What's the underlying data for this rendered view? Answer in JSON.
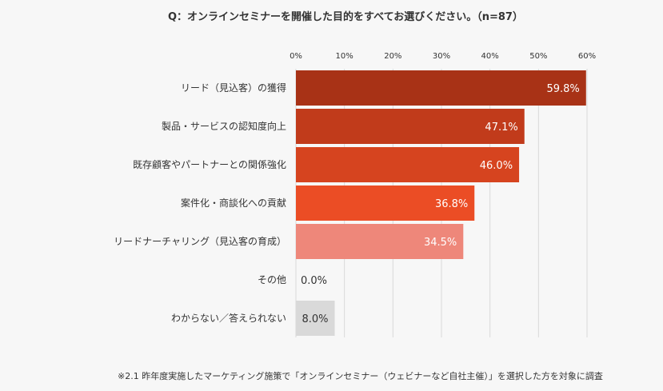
{
  "chart_data": {
    "type": "bar",
    "orientation": "horizontal",
    "title": "Q：オンラインセミナーを開催した目的をすべてお選びください。（n=87）",
    "categories": [
      "リード（見込客）の獲得",
      "製品・サービスの認知度向上",
      "既存顧客やパートナーとの関係強化",
      "案件化・商談化への貢献",
      "リードナーチャリング（見込客の育成）",
      "その他",
      "わからない／答えられない"
    ],
    "values": [
      59.8,
      47.1,
      46.0,
      36.8,
      34.5,
      0.0,
      8.0
    ],
    "data_labels": [
      "59.8%",
      "47.1%",
      "46.0%",
      "36.8%",
      "34.5%",
      "0.0%",
      "8.0%"
    ],
    "colors": [
      "#a83216",
      "#c13b1b",
      "#d6441f",
      "#eb4d25",
      "#ee877a",
      "#d9d9d9",
      "#d9d9d9"
    ],
    "label_colors": [
      "#ffffff",
      "#ffffff",
      "#ffffff",
      "#ffffff",
      "#ffffff",
      "#333333",
      "#333333"
    ],
    "xlim": [
      0,
      60
    ],
    "xticks": [
      "0%",
      "10%",
      "20%",
      "30%",
      "40%",
      "50%",
      "60%"
    ],
    "xtick_values": [
      0,
      10,
      20,
      30,
      40,
      50,
      60
    ],
    "axis_position": "top",
    "grid": true,
    "footnote": "※2.1 昨年度実施したマーケティング施策で「オンラインセミナー（ウェビナーなど自社主催）」を選択した方を対象に調査"
  }
}
